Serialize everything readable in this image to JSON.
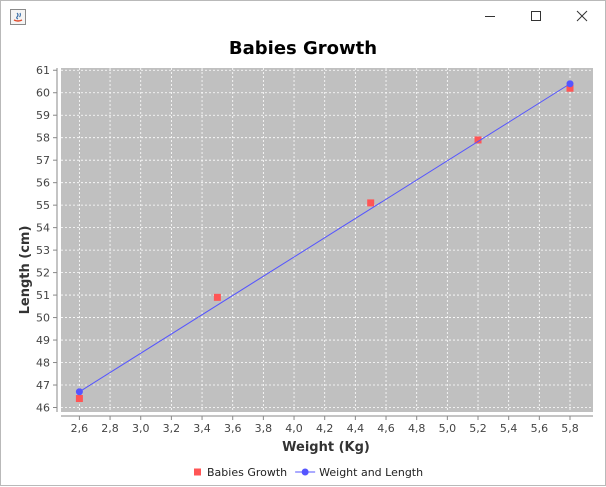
{
  "window": {
    "title": ""
  },
  "chart_data": {
    "type": "scatter",
    "title": "Babies Growth",
    "xlabel": "Weight (Kg)",
    "ylabel": "Length (cm)",
    "xlim": [
      2.48,
      5.95
    ],
    "ylim": [
      45.8,
      61.1
    ],
    "x_ticks": [
      "2,6",
      "2,8",
      "3,0",
      "3,2",
      "3,4",
      "3,6",
      "3,8",
      "4,0",
      "4,2",
      "4,4",
      "4,6",
      "4,8",
      "5,0",
      "5,2",
      "5,4",
      "5,6",
      "5,8"
    ],
    "x_tick_values": [
      2.6,
      2.8,
      3.0,
      3.2,
      3.4,
      3.6,
      3.8,
      4.0,
      4.2,
      4.4,
      4.6,
      4.8,
      5.0,
      5.2,
      5.4,
      5.6,
      5.8
    ],
    "y_ticks": [
      "46",
      "47",
      "48",
      "49",
      "50",
      "51",
      "52",
      "53",
      "54",
      "55",
      "56",
      "57",
      "58",
      "59",
      "60",
      "61"
    ],
    "y_tick_values": [
      46,
      47,
      48,
      49,
      50,
      51,
      52,
      53,
      54,
      55,
      56,
      57,
      58,
      59,
      60,
      61
    ],
    "grid": true,
    "legend_position": "bottom",
    "colors": {
      "plot_background": "#c0c0c0",
      "grid": "#ffffff",
      "series_scatter": "#ff5555",
      "series_line": "#5555ff"
    },
    "series": [
      {
        "name": "Babies Growth",
        "kind": "points",
        "marker": "square",
        "x": [
          2.6,
          3.5,
          4.5,
          5.2,
          5.8
        ],
        "y": [
          46.4,
          50.9,
          55.1,
          57.9,
          60.2
        ]
      },
      {
        "name": "Weight and Length",
        "kind": "line",
        "marker": "circle",
        "x": [
          2.6,
          5.8
        ],
        "y": [
          46.7,
          60.4
        ]
      }
    ]
  }
}
